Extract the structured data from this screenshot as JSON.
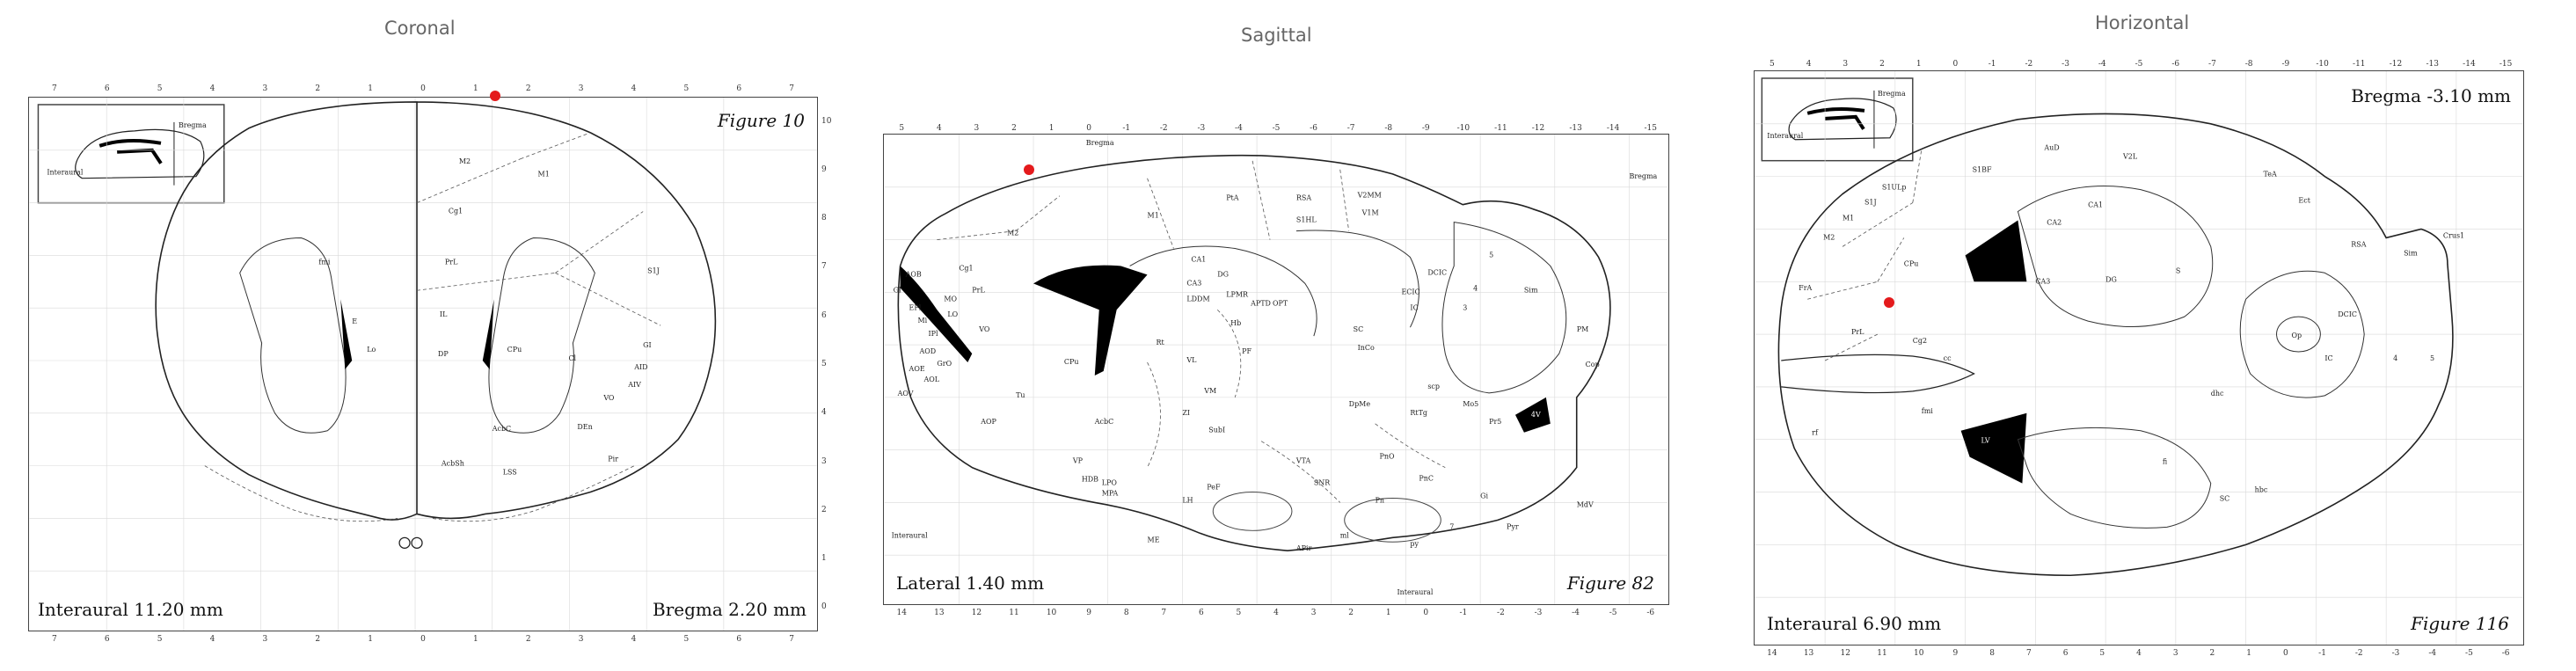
{
  "views": {
    "coronal": {
      "title": "Coronal",
      "caption_left": "Interaural 11.20 mm",
      "caption_right": "Bregma 2.20 mm",
      "figure": "Figure 10",
      "inset_labels": [
        "Interaural",
        "Bregma"
      ],
      "top_ticks": [
        "7",
        "6",
        "5",
        "4",
        "3",
        "2",
        "1",
        "0",
        "1",
        "2",
        "3",
        "4",
        "5",
        "6",
        "7"
      ],
      "side_ticks": [
        "10",
        "9",
        "8",
        "7",
        "6",
        "5",
        "4",
        "3",
        "2",
        "1",
        "0"
      ],
      "regions": [
        "M2",
        "M1",
        "S1J",
        "Cg1",
        "PrL",
        "IL",
        "DP",
        "CPu",
        "Cl",
        "GI",
        "AID",
        "AIV",
        "VO",
        "DEn",
        "Pir",
        "AcbC",
        "AcbSh",
        "LSS",
        "fmi",
        "E",
        "Lo"
      ]
    },
    "sagittal": {
      "title": "Sagittal",
      "caption_left": "Lateral 1.40 mm",
      "figure": "Figure 82",
      "bregma_label": "Bregma",
      "interaural_label": "Interaural",
      "top_ticks": [
        "5",
        "4",
        "3",
        "2",
        "1",
        "0",
        "-1",
        "-2",
        "-3",
        "-4",
        "-5",
        "-6",
        "-7",
        "-8",
        "-9",
        "-10",
        "-11",
        "-12",
        "-13",
        "-14",
        "-15"
      ],
      "bottom_ticks": [
        "14",
        "13",
        "12",
        "11",
        "10",
        "9",
        "8",
        "7",
        "6",
        "5",
        "4",
        "3",
        "2",
        "1",
        "0",
        "-1",
        "-2",
        "-3",
        "-4",
        "-5",
        "-6"
      ],
      "regions": [
        "M2",
        "M1",
        "PtA",
        "RSA",
        "V2MM",
        "V1M",
        "S1HL",
        "Cg1",
        "PrL",
        "MO",
        "VO",
        "LO",
        "AOB",
        "AOD",
        "AOE",
        "AOL",
        "AOV",
        "Gl",
        "EPl",
        "Mi",
        "IPl",
        "GrO",
        "CPu",
        "AcbC",
        "AOP",
        "LV",
        "Tu",
        "VP",
        "LPO",
        "MPA",
        "HDB",
        "CA1",
        "CA3",
        "DG",
        "LDDM",
        "LPMR",
        "APTD",
        "OPT",
        "VL",
        "PF",
        "Rt",
        "VM",
        "ZI",
        "SubI",
        "Hb",
        "LH",
        "PeF",
        "ME",
        "VTA",
        "SNR",
        "PnO",
        "DpMe",
        "InCo",
        "SC",
        "IC",
        "DCIC",
        "ECIC",
        "3",
        "4",
        "5",
        "Sim",
        "Cop",
        "PM",
        "Pyr",
        "py",
        "ml",
        "Gi",
        "RtTg",
        "Pn",
        "APir",
        "MdV",
        "PnC",
        "scp",
        "Mo5",
        "Pr5",
        "4V",
        "7"
      ]
    },
    "horizontal": {
      "title": "Horizontal",
      "caption_left": "Interaural 6.90 mm",
      "caption_right": "Bregma -3.10 mm",
      "figure": "Figure 116",
      "inset_labels": [
        "Interaural",
        "Bregma"
      ],
      "top_ticks": [
        "5",
        "4",
        "3",
        "2",
        "1",
        "0",
        "-1",
        "-2",
        "-3",
        "-4",
        "-5",
        "-6",
        "-7",
        "-8",
        "-9",
        "-10",
        "-11",
        "-12",
        "-13",
        "-14",
        "-15"
      ],
      "bottom_ticks": [
        "14",
        "13",
        "12",
        "11",
        "10",
        "9",
        "8",
        "7",
        "6",
        "5",
        "4",
        "3",
        "2",
        "1",
        "0",
        "-1",
        "-2",
        "-3",
        "-4",
        "-5",
        "-6"
      ],
      "regions": [
        "AuD",
        "V2L",
        "S1BF",
        "S1ULp",
        "S1J",
        "M1",
        "M2",
        "FrA",
        "PrL",
        "Cg2",
        "CPu",
        "CA1",
        "CA2",
        "CA3",
        "DG",
        "S",
        "LV",
        "RSA",
        "TeA",
        "Ect",
        "DCIC",
        "Op",
        "Sim",
        "Crus1",
        "4",
        "5",
        "cc",
        "fmi",
        "rf",
        "fi",
        "dhc",
        "hbc",
        "SC",
        "IC"
      ]
    }
  },
  "colors": {
    "marker": "#e41a1c",
    "outline": "#222222",
    "ventricle": "#000000",
    "title_text": "#666666"
  }
}
